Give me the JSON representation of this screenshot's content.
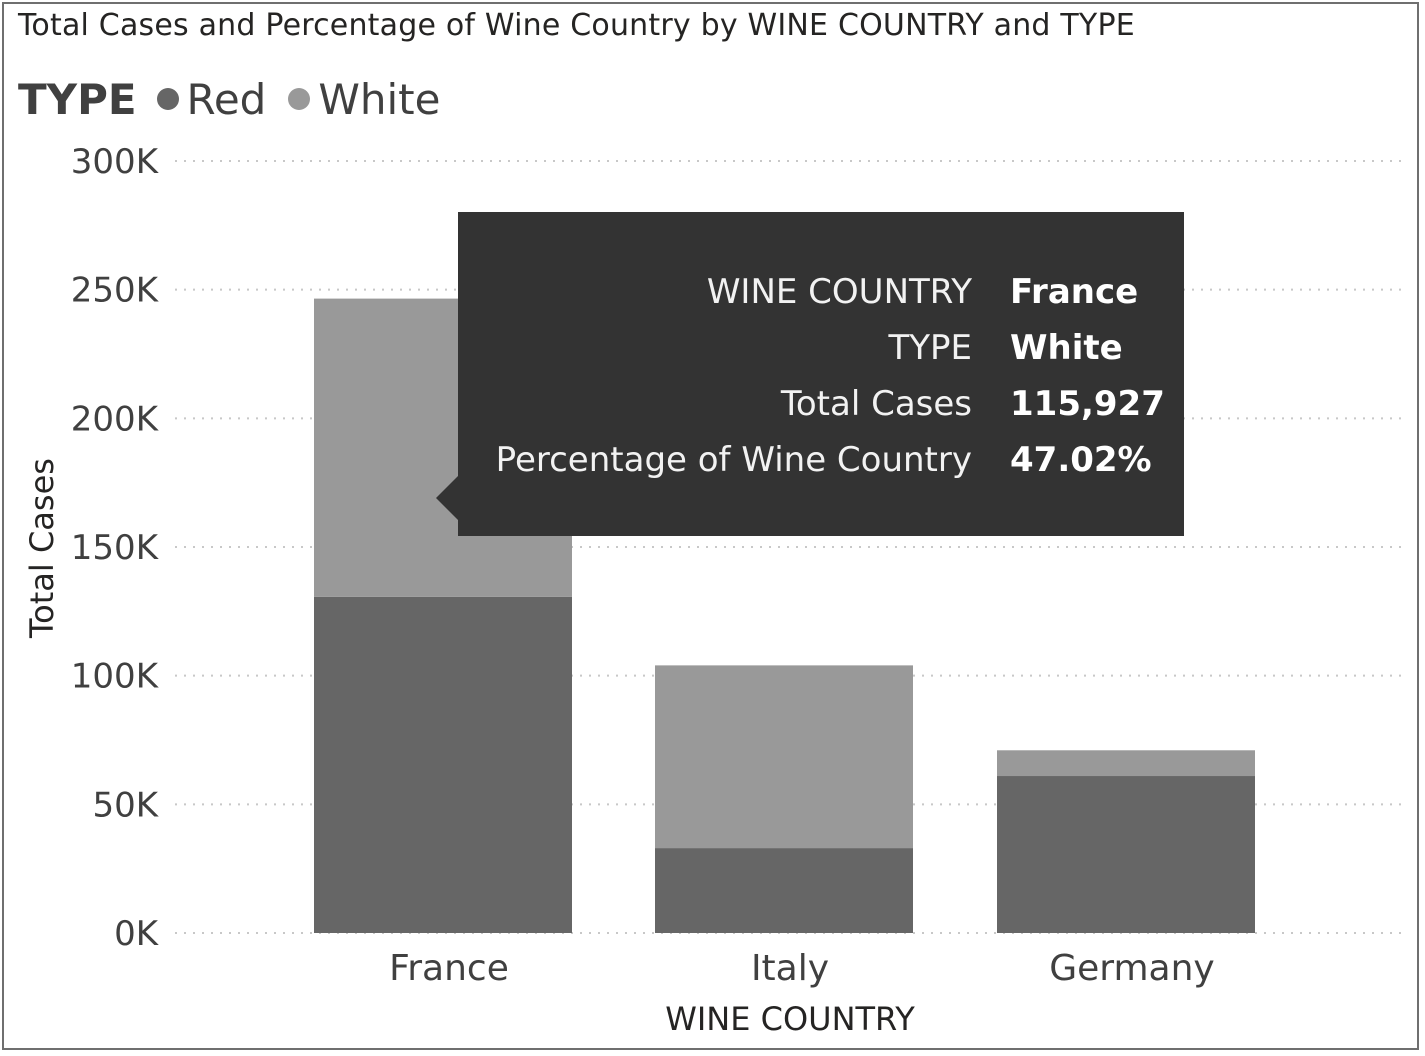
{
  "chart_data": {
    "type": "bar",
    "stacked": true,
    "title": "Total Cases and Percentage of Wine Country by WINE COUNTRY and TYPE",
    "xlabel": "WINE COUNTRY",
    "ylabel": "Total Cases",
    "ylim": [
      0,
      300000
    ],
    "yticks": [
      "0K",
      "50K",
      "100K",
      "150K",
      "200K",
      "250K",
      "300K"
    ],
    "grid": true,
    "legend": {
      "title": "TYPE",
      "placement": "top-left"
    },
    "categories": [
      "France",
      "Italy",
      "Germany"
    ],
    "series": [
      {
        "name": "Red",
        "color": "#666666",
        "values": [
          130600,
          33000,
          61000
        ]
      },
      {
        "name": "White",
        "color": "#999999",
        "values": [
          115927,
          71000,
          10000
        ]
      }
    ]
  },
  "tooltip": {
    "rows": [
      {
        "label": "WINE COUNTRY",
        "value": "France"
      },
      {
        "label": "TYPE",
        "value": "White"
      },
      {
        "label": "Total Cases",
        "value": "115,927"
      },
      {
        "label": "Percentage of Wine Country",
        "value": "47.02%"
      }
    ]
  }
}
